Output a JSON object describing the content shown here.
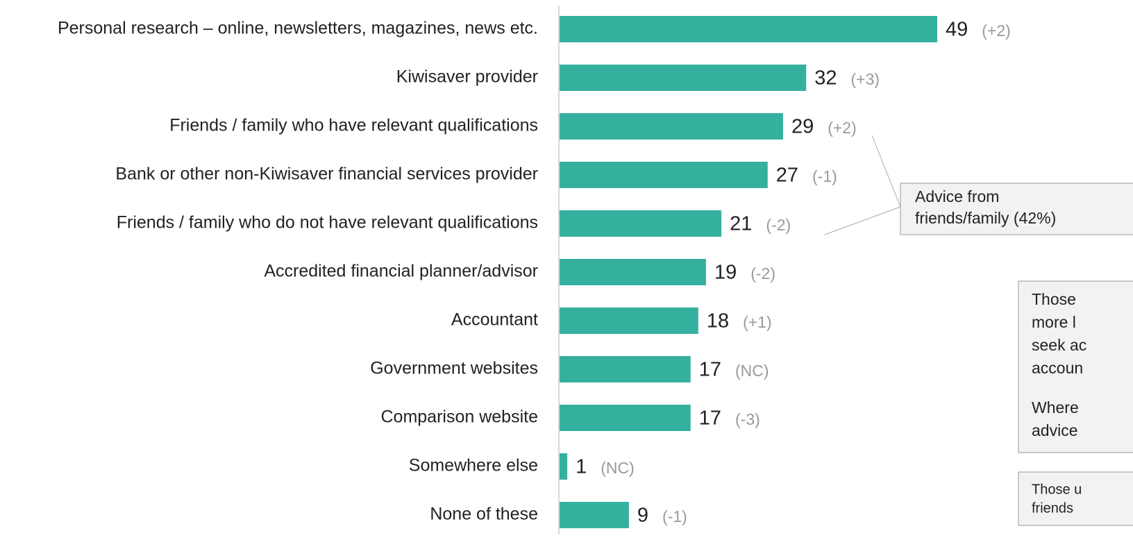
{
  "chart_data": {
    "type": "barh",
    "categories": [
      "Personal research – online, newsletters, magazines, news etc.",
      "Kiwisaver provider",
      "Friends / family who have relevant qualifications",
      "Bank or other non-Kiwisaver financial services provider",
      "Friends / family who do not have relevant qualifications",
      "Accredited financial planner/advisor",
      "Accountant",
      "Government websites",
      "Comparison website",
      "Somewhere else",
      "None of these"
    ],
    "values": [
      49,
      32,
      29,
      27,
      21,
      19,
      18,
      17,
      17,
      1,
      9
    ],
    "changes": [
      "(+2)",
      "(+3)",
      "(+2)",
      "(-1)",
      "(-2)",
      "(-2)",
      "(+1)",
      "(NC)",
      "(-3)",
      "(NC)",
      "(-1)"
    ],
    "color": "#35b09e",
    "xlim": [
      0,
      49
    ],
    "annotations": [
      {
        "lines": [
          "Advice from",
          "friends/family (42%)"
        ]
      },
      {
        "lines": [
          "Those",
          "more l",
          "seek ac",
          "accoun",
          "Where",
          "advice"
        ]
      },
      {
        "lines": [
          "Those u",
          "friends"
        ]
      }
    ]
  }
}
